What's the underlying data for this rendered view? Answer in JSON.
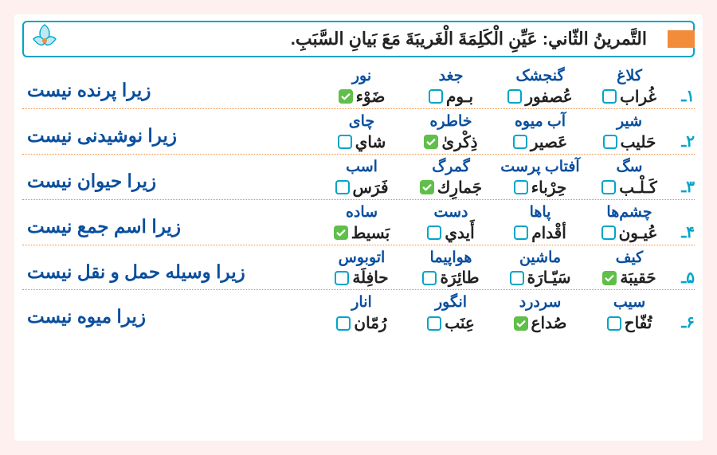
{
  "title": "التَّمرينُ الثّاني: عَيِّنِ الْكَلِمَةَ الْغَريبَةَ مَعَ بَيانِ السَّبَبِ.",
  "colors": {
    "page_bg": "#fef0ee",
    "card_bg": "#ffffff",
    "border_blue": "#00a5c8",
    "accent_orange": "#f28c3a",
    "persian_blue": "#0a4f9e",
    "arabic_black": "#222222",
    "check_green": "#5fbf4a"
  },
  "rows": [
    {
      "num": "۱ـ",
      "words": [
        {
          "fa": "کلاغ",
          "ar": "غُراب",
          "checked": false
        },
        {
          "fa": "گنجشک",
          "ar": "عُصفور",
          "checked": false
        },
        {
          "fa": "جغد",
          "ar": "بـوم",
          "checked": false
        },
        {
          "fa": "نور",
          "ar": "ضَوْء",
          "checked": true
        }
      ],
      "reason": "زیرا پرنده نیست"
    },
    {
      "num": "۲ـ",
      "words": [
        {
          "fa": "شیر",
          "ar": "حَلیب",
          "checked": false
        },
        {
          "fa": "آب میوه",
          "ar": "عَصیر",
          "checked": false
        },
        {
          "fa": "خاطره",
          "ar": "ذِكْرىٰ",
          "checked": true
        },
        {
          "fa": "چای",
          "ar": "شاي",
          "checked": false
        }
      ],
      "reason": "زیرا نوشیدنی نیست"
    },
    {
      "num": "۳ـ",
      "words": [
        {
          "fa": "سگ",
          "ar": "كَـلْـب",
          "checked": false
        },
        {
          "fa": "آفتاب پرست",
          "ar": "حِرْباء",
          "checked": false
        },
        {
          "fa": "گمرگ",
          "ar": "جَمارِك",
          "checked": true
        },
        {
          "fa": "اسب",
          "ar": "فَرَس",
          "checked": false
        }
      ],
      "reason": "زیرا حیوان نیست"
    },
    {
      "num": "۴ـ",
      "words": [
        {
          "fa": "چشم‌ها",
          "ar": "عُيـون",
          "checked": false
        },
        {
          "fa": "پاها",
          "ar": "أقْدام",
          "checked": false
        },
        {
          "fa": "دست",
          "ar": "أَيدي",
          "checked": false
        },
        {
          "fa": "ساده",
          "ar": "بَسيط",
          "checked": true
        }
      ],
      "reason": "زیرا اسم جمع نیست"
    },
    {
      "num": "۵ـ",
      "words": [
        {
          "fa": "کیف",
          "ar": "حَقيبَة",
          "checked": true
        },
        {
          "fa": "ماشین",
          "ar": "سَيّـارَة",
          "checked": false
        },
        {
          "fa": "هواپیما",
          "ar": "طائِرَة",
          "checked": false
        },
        {
          "fa": "اتوبوس",
          "ar": "حافِلَة",
          "checked": false
        }
      ],
      "reason": "زیرا وسیله حمل و نقل نیست"
    },
    {
      "num": "۶ـ",
      "words": [
        {
          "fa": "سیب",
          "ar": "تُفّاح",
          "checked": false
        },
        {
          "fa": "سردرد",
          "ar": "صُداع",
          "checked": true
        },
        {
          "fa": "انگور",
          "ar": "عِنَب",
          "checked": false
        },
        {
          "fa": "انار",
          "ar": "رُمّان",
          "checked": false
        }
      ],
      "reason": "زیرا میوه نیست"
    }
  ]
}
